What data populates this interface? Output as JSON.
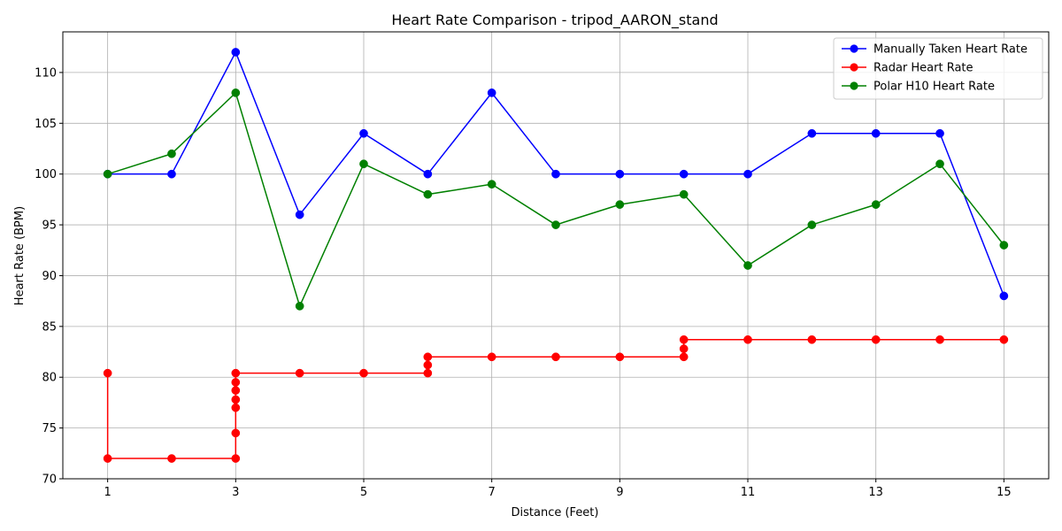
{
  "chart_data": {
    "type": "line",
    "title": "Heart Rate Comparison - tripod_AARON_stand",
    "xlabel": "Distance (Feet)",
    "ylabel": "Heart Rate (BPM)",
    "xlim": [
      0.3,
      15.7
    ],
    "ylim": [
      70,
      114
    ],
    "xticks": [
      1,
      3,
      5,
      7,
      9,
      11,
      13,
      15
    ],
    "yticks": [
      70,
      75,
      80,
      85,
      90,
      95,
      100,
      105,
      110
    ],
    "grid": true,
    "legend_position": "top-right",
    "series": [
      {
        "name": "Manually Taken Heart Rate",
        "color": "#0000ff",
        "step": false,
        "points": [
          [
            1,
            100
          ],
          [
            2,
            100
          ],
          [
            3,
            112
          ],
          [
            4,
            96
          ],
          [
            5,
            104
          ],
          [
            6,
            100
          ],
          [
            7,
            108
          ],
          [
            8,
            100
          ],
          [
            9,
            100
          ],
          [
            10,
            100
          ],
          [
            11,
            100
          ],
          [
            12,
            104
          ],
          [
            13,
            104
          ],
          [
            14,
            104
          ],
          [
            15,
            88
          ]
        ]
      },
      {
        "name": "Radar Heart Rate",
        "color": "#ff0000",
        "step": true,
        "points": [
          [
            1,
            80.4
          ],
          [
            1,
            72
          ],
          [
            2,
            72
          ],
          [
            3,
            72
          ],
          [
            3,
            74.5
          ],
          [
            3,
            77
          ],
          [
            3,
            77.8
          ],
          [
            3,
            78.7
          ],
          [
            3,
            79.5
          ],
          [
            3,
            80.4
          ],
          [
            4,
            80.4
          ],
          [
            5,
            80.4
          ],
          [
            6,
            80.4
          ],
          [
            6,
            81.2
          ],
          [
            6,
            82
          ],
          [
            7,
            82
          ],
          [
            8,
            82
          ],
          [
            9,
            82
          ],
          [
            10,
            82
          ],
          [
            10,
            82.8
          ],
          [
            10,
            83.7
          ],
          [
            11,
            83.7
          ],
          [
            12,
            83.7
          ],
          [
            13,
            83.7
          ],
          [
            14,
            83.7
          ],
          [
            15,
            83.7
          ]
        ]
      },
      {
        "name": "Polar H10 Heart Rate",
        "color": "#008000",
        "step": false,
        "points": [
          [
            1,
            100
          ],
          [
            2,
            102
          ],
          [
            3,
            108
          ],
          [
            4,
            87
          ],
          [
            5,
            101
          ],
          [
            6,
            98
          ],
          [
            7,
            99
          ],
          [
            8,
            95
          ],
          [
            9,
            97
          ],
          [
            10,
            98
          ],
          [
            11,
            91
          ],
          [
            12,
            95
          ],
          [
            13,
            97
          ],
          [
            14,
            101
          ],
          [
            15,
            93
          ]
        ]
      }
    ]
  }
}
